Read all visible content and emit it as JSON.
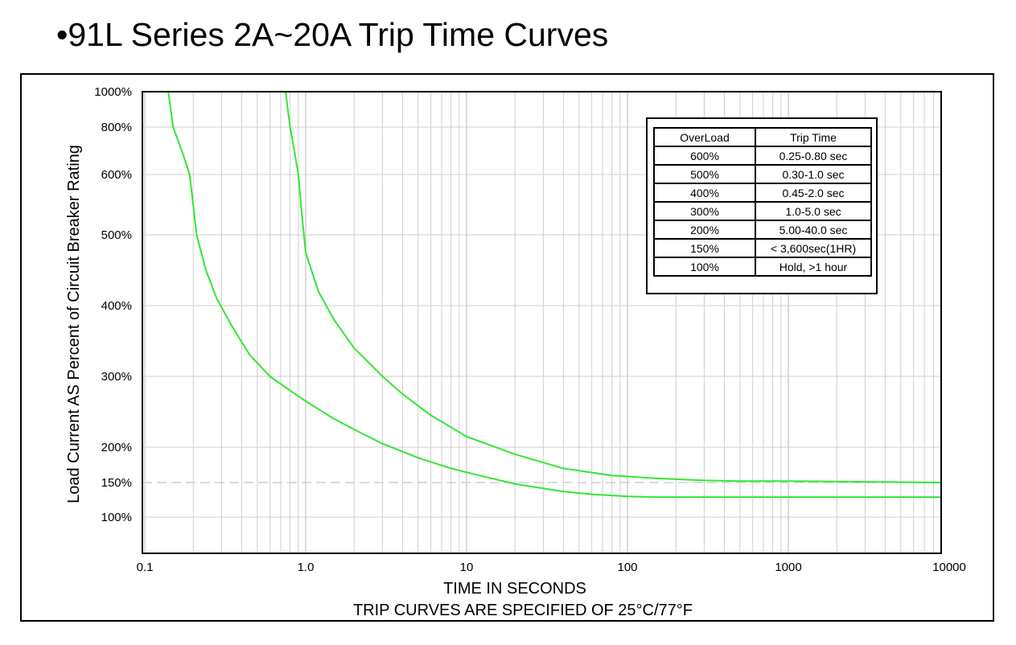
{
  "title": "•91L Series 2A~20A Trip Time Curves",
  "chart_data": {
    "type": "line",
    "xlabel": "TIME IN SECONDS",
    "subtitle": "TRIP CURVES ARE SPECIFIED OF 25°C/77°F",
    "ylabel": "Load Current AS Percent of Circuit Breaker Rating",
    "x_scale": "log",
    "xlim": [
      0.1,
      10000
    ],
    "x_ticks": [
      {
        "value": 0.1,
        "label": "0.1"
      },
      {
        "value": 1,
        "label": "1.0"
      },
      {
        "value": 10,
        "label": "10"
      },
      {
        "value": 100,
        "label": "100"
      },
      {
        "value": 1000,
        "label": "1000"
      },
      {
        "value": 10000,
        "label": "10000"
      }
    ],
    "y_ticks": [
      {
        "value": 100,
        "label": "100%"
      },
      {
        "value": 150,
        "label": "150%"
      },
      {
        "value": 200,
        "label": "200%"
      },
      {
        "value": 300,
        "label": "300%"
      },
      {
        "value": 400,
        "label": "400%"
      },
      {
        "value": 500,
        "label": "500%"
      },
      {
        "value": 600,
        "label": "600%"
      },
      {
        "value": 800,
        "label": "800%"
      },
      {
        "value": 1000,
        "label": "1000%"
      }
    ],
    "grid": true,
    "reference_line": {
      "y": 150,
      "style": "dashed"
    },
    "line_color": "#33e633",
    "series": [
      {
        "x": [
          0.14,
          0.15,
          0.17,
          0.19,
          0.21,
          0.24,
          0.28,
          0.35,
          0.45,
          0.6,
          0.8,
          1.0,
          1.5,
          2.0,
          3.0,
          5.0,
          8.0,
          12,
          20,
          40,
          60,
          100,
          150,
          300,
          1000,
          3000,
          11000
        ],
        "y": [
          1000,
          800,
          700,
          600,
          500,
          450,
          410,
          370,
          330,
          300,
          280,
          265,
          240,
          225,
          205,
          185,
          170,
          160,
          148,
          137,
          133,
          130,
          129,
          129,
          129,
          129,
          129
        ]
      },
      {
        "x": [
          0.75,
          0.8,
          0.85,
          0.9,
          0.95,
          0.97,
          1.0,
          1.2,
          1.5,
          2.0,
          3.0,
          4.0,
          6.0,
          10,
          20,
          40,
          80,
          150,
          300,
          500,
          1000,
          3000,
          11000
        ],
        "y": [
          1000,
          800,
          700,
          600,
          530,
          505,
          475,
          420,
          380,
          340,
          300,
          275,
          245,
          215,
          190,
          170,
          160,
          156,
          153,
          152,
          152,
          151,
          150
        ]
      }
    ],
    "table": {
      "headers": [
        "OverLoad",
        "Trip Time"
      ],
      "rows": [
        [
          "600%",
          "0.25-0.80 sec"
        ],
        [
          "500%",
          "0.30-1.0 sec"
        ],
        [
          "400%",
          "0.45-2.0 sec"
        ],
        [
          "300%",
          "1.0-5.0 sec"
        ],
        [
          "200%",
          "5.00-40.0 sec"
        ],
        [
          "150%",
          "< 3,600sec(1HR)"
        ],
        [
          "100%",
          "Hold, >1 hour"
        ]
      ]
    }
  }
}
